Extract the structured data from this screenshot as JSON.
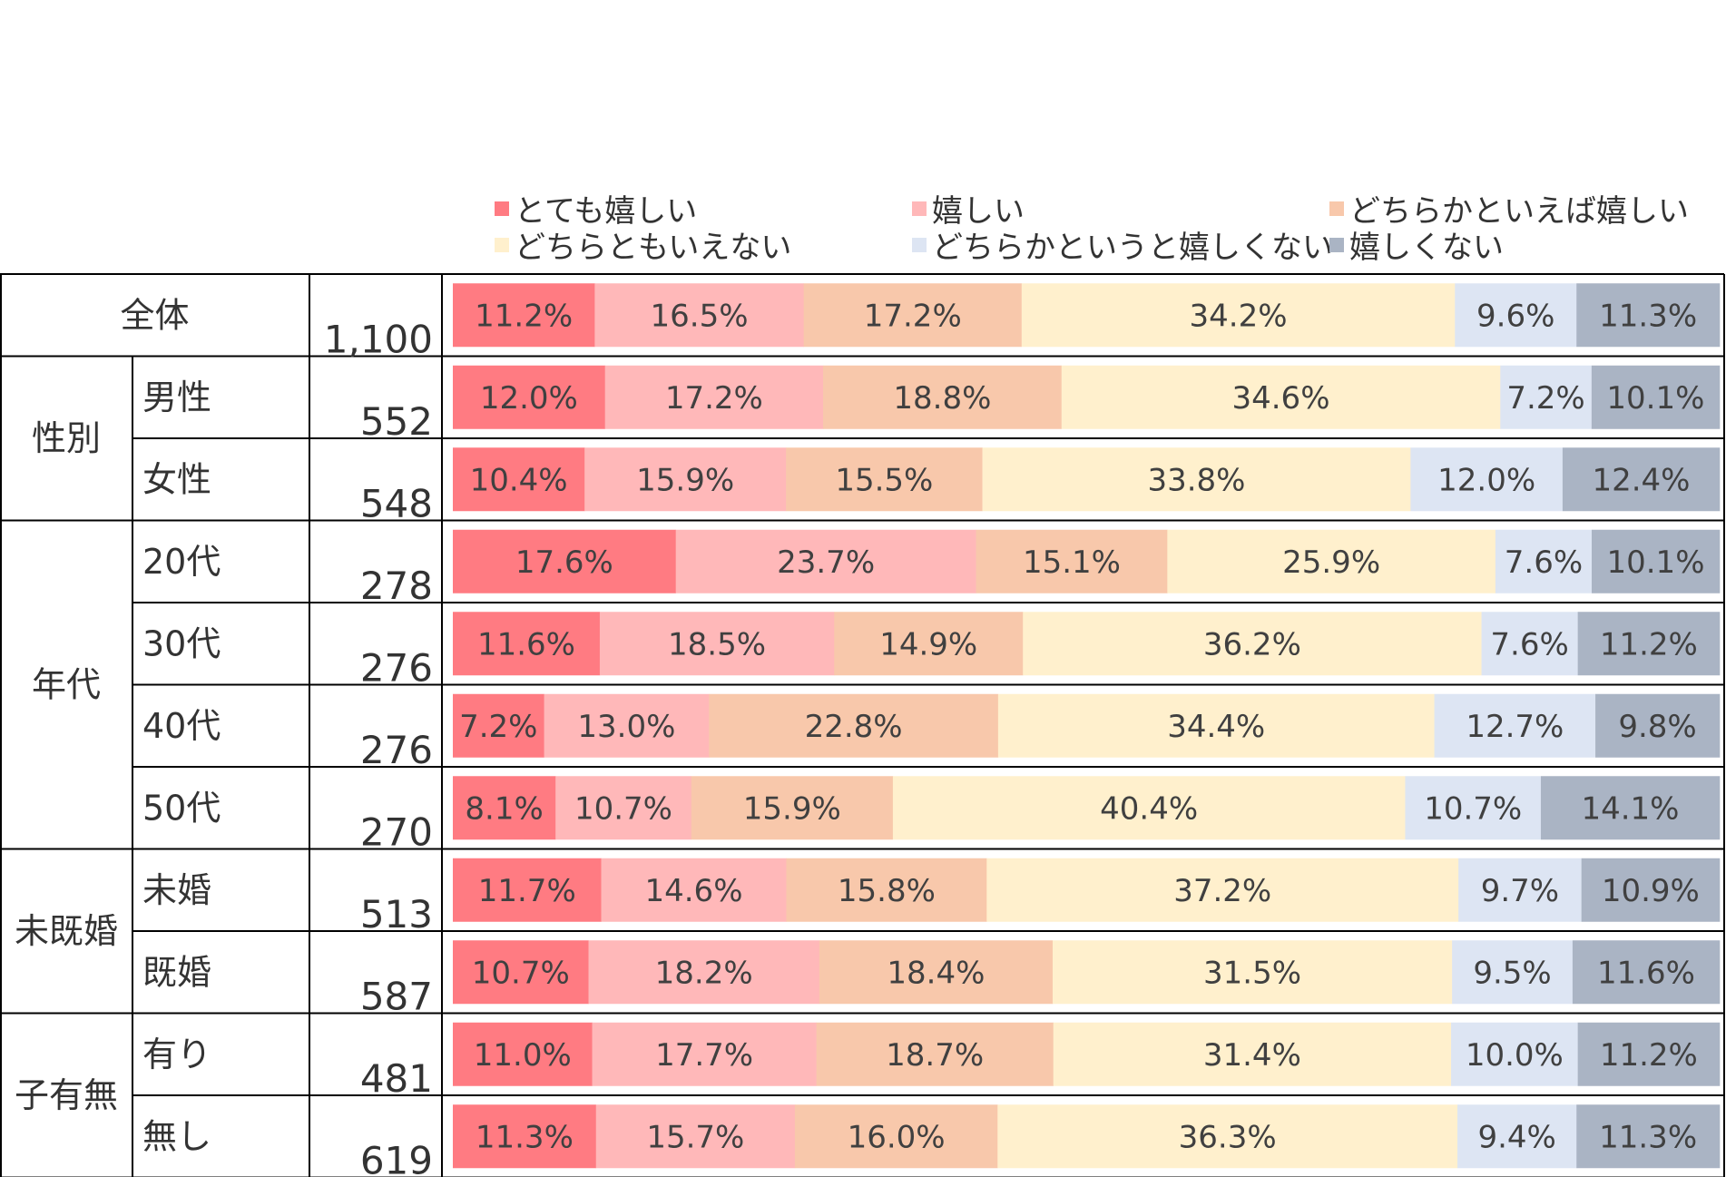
{
  "chart_data": {
    "type": "bar",
    "orientation": "horizontal",
    "stacked": true,
    "percent": true,
    "legend_position": "top",
    "legend": [
      "とても嬉しい",
      "嬉しい",
      "どちらかといえば嬉しい",
      "どちらともいえない",
      "どちらかというと嬉しくない",
      "嬉しくない"
    ],
    "colors": [
      "#ff7b82",
      "#ffb8b9",
      "#f8c8ab",
      "#fff0cd",
      "#dde5f3",
      "#aab4c4"
    ],
    "groups": [
      {
        "label": "全体",
        "rows": [
          {
            "label": "",
            "n": "1,100",
            "values": [
              11.2,
              16.5,
              17.2,
              34.2,
              9.6,
              11.3
            ]
          }
        ]
      },
      {
        "label": "性別",
        "rows": [
          {
            "label": "男性",
            "n": "552",
            "values": [
              12.0,
              17.2,
              18.8,
              34.6,
              7.2,
              10.1
            ]
          },
          {
            "label": "女性",
            "n": "548",
            "values": [
              10.4,
              15.9,
              15.5,
              33.8,
              12.0,
              12.4
            ]
          }
        ]
      },
      {
        "label": "年代",
        "rows": [
          {
            "label": "20代",
            "n": "278",
            "values": [
              17.6,
              23.7,
              15.1,
              25.9,
              7.6,
              10.1
            ]
          },
          {
            "label": "30代",
            "n": "276",
            "values": [
              11.6,
              18.5,
              14.9,
              36.2,
              7.6,
              11.2
            ]
          },
          {
            "label": "40代",
            "n": "276",
            "values": [
              7.2,
              13.0,
              22.8,
              34.4,
              12.7,
              9.8
            ]
          },
          {
            "label": "50代",
            "n": "270",
            "values": [
              8.1,
              10.7,
              15.9,
              40.4,
              10.7,
              14.1
            ]
          }
        ]
      },
      {
        "label": "未既婚",
        "rows": [
          {
            "label": "未婚",
            "n": "513",
            "values": [
              11.7,
              14.6,
              15.8,
              37.2,
              9.7,
              10.9
            ]
          },
          {
            "label": "既婚",
            "n": "587",
            "values": [
              10.7,
              18.2,
              18.4,
              31.5,
              9.5,
              11.6
            ]
          }
        ]
      },
      {
        "label": "子有無",
        "rows": [
          {
            "label": "有り",
            "n": "481",
            "values": [
              11.0,
              17.7,
              18.7,
              31.4,
              10.0,
              11.2
            ]
          },
          {
            "label": "無し",
            "n": "619",
            "values": [
              11.3,
              15.7,
              16.0,
              36.3,
              9.4,
              11.3
            ]
          }
        ]
      }
    ]
  }
}
